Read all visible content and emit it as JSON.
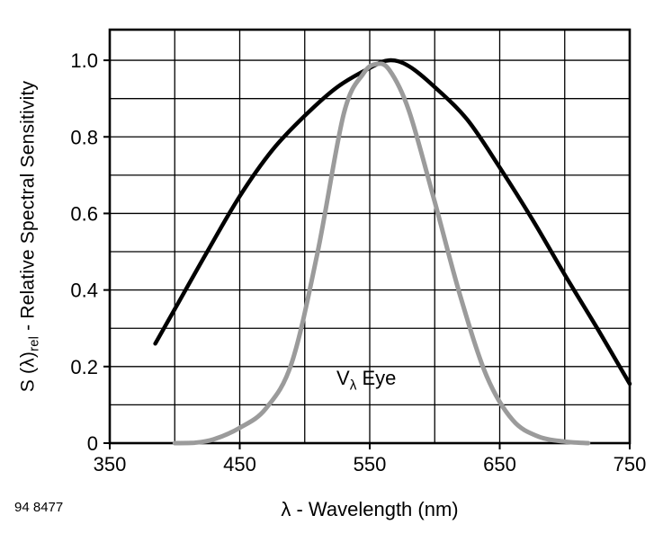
{
  "chart_data": {
    "type": "line",
    "xlabel": "λ - Wavelength (nm)",
    "ylabel": "S (λ)rel - Relative Spectral Sensitivity",
    "ylabel_parts": {
      "prefix": "S (λ)",
      "sub": "rel",
      "suffix": " - Relative Spectral Sensitivity"
    },
    "xlim": [
      350,
      750
    ],
    "ylim": [
      0,
      1.08
    ],
    "x_grid_step": 50,
    "y_grid_step": 0.1,
    "y_grid_top": 1.0,
    "grid": true,
    "x_major_ticks": [
      350,
      450,
      550,
      650,
      750
    ],
    "x_tick_labels": [
      "350",
      "450",
      "550",
      "650",
      "750"
    ],
    "y_major_ticks": [
      0,
      0.2,
      0.4,
      0.6,
      0.8,
      1.0
    ],
    "y_tick_labels": [
      "0",
      "0.2",
      "0.4",
      "0.6",
      "0.8",
      "1.0"
    ],
    "series": [
      {
        "id": "black-curve",
        "label": "",
        "color": "#000000",
        "width": 4.5,
        "x": [
          385,
          400,
          425,
          450,
          475,
          500,
          525,
          550,
          565,
          580,
          600,
          625,
          650,
          675,
          700,
          725,
          750
        ],
        "y": [
          0.26,
          0.35,
          0.5,
          0.645,
          0.765,
          0.855,
          0.93,
          0.98,
          1.0,
          0.985,
          0.93,
          0.845,
          0.72,
          0.585,
          0.44,
          0.3,
          0.155
        ]
      },
      {
        "id": "eye-curve",
        "label": "Vλ Eye",
        "color": "#9b9b9b",
        "width": 5,
        "x": [
          400,
          415,
          430,
          450,
          470,
          490,
          510,
          530,
          545,
          555,
          565,
          580,
          600,
          620,
          640,
          660,
          680,
          700,
          718
        ],
        "y": [
          0.0,
          0.001,
          0.01,
          0.04,
          0.09,
          0.21,
          0.5,
          0.86,
          0.965,
          0.99,
          0.975,
          0.87,
          0.63,
          0.38,
          0.175,
          0.06,
          0.017,
          0.004,
          0.0
        ]
      }
    ],
    "annotation": {
      "prefix": "V",
      "sub": "λ",
      "suffix": " Eye",
      "position": {
        "x_nm": 545,
        "y": 0.18
      }
    },
    "figure_number": "94 8477"
  },
  "colors": {
    "background": "#ffffff",
    "frame": "#000000",
    "grid": "#000000"
  }
}
